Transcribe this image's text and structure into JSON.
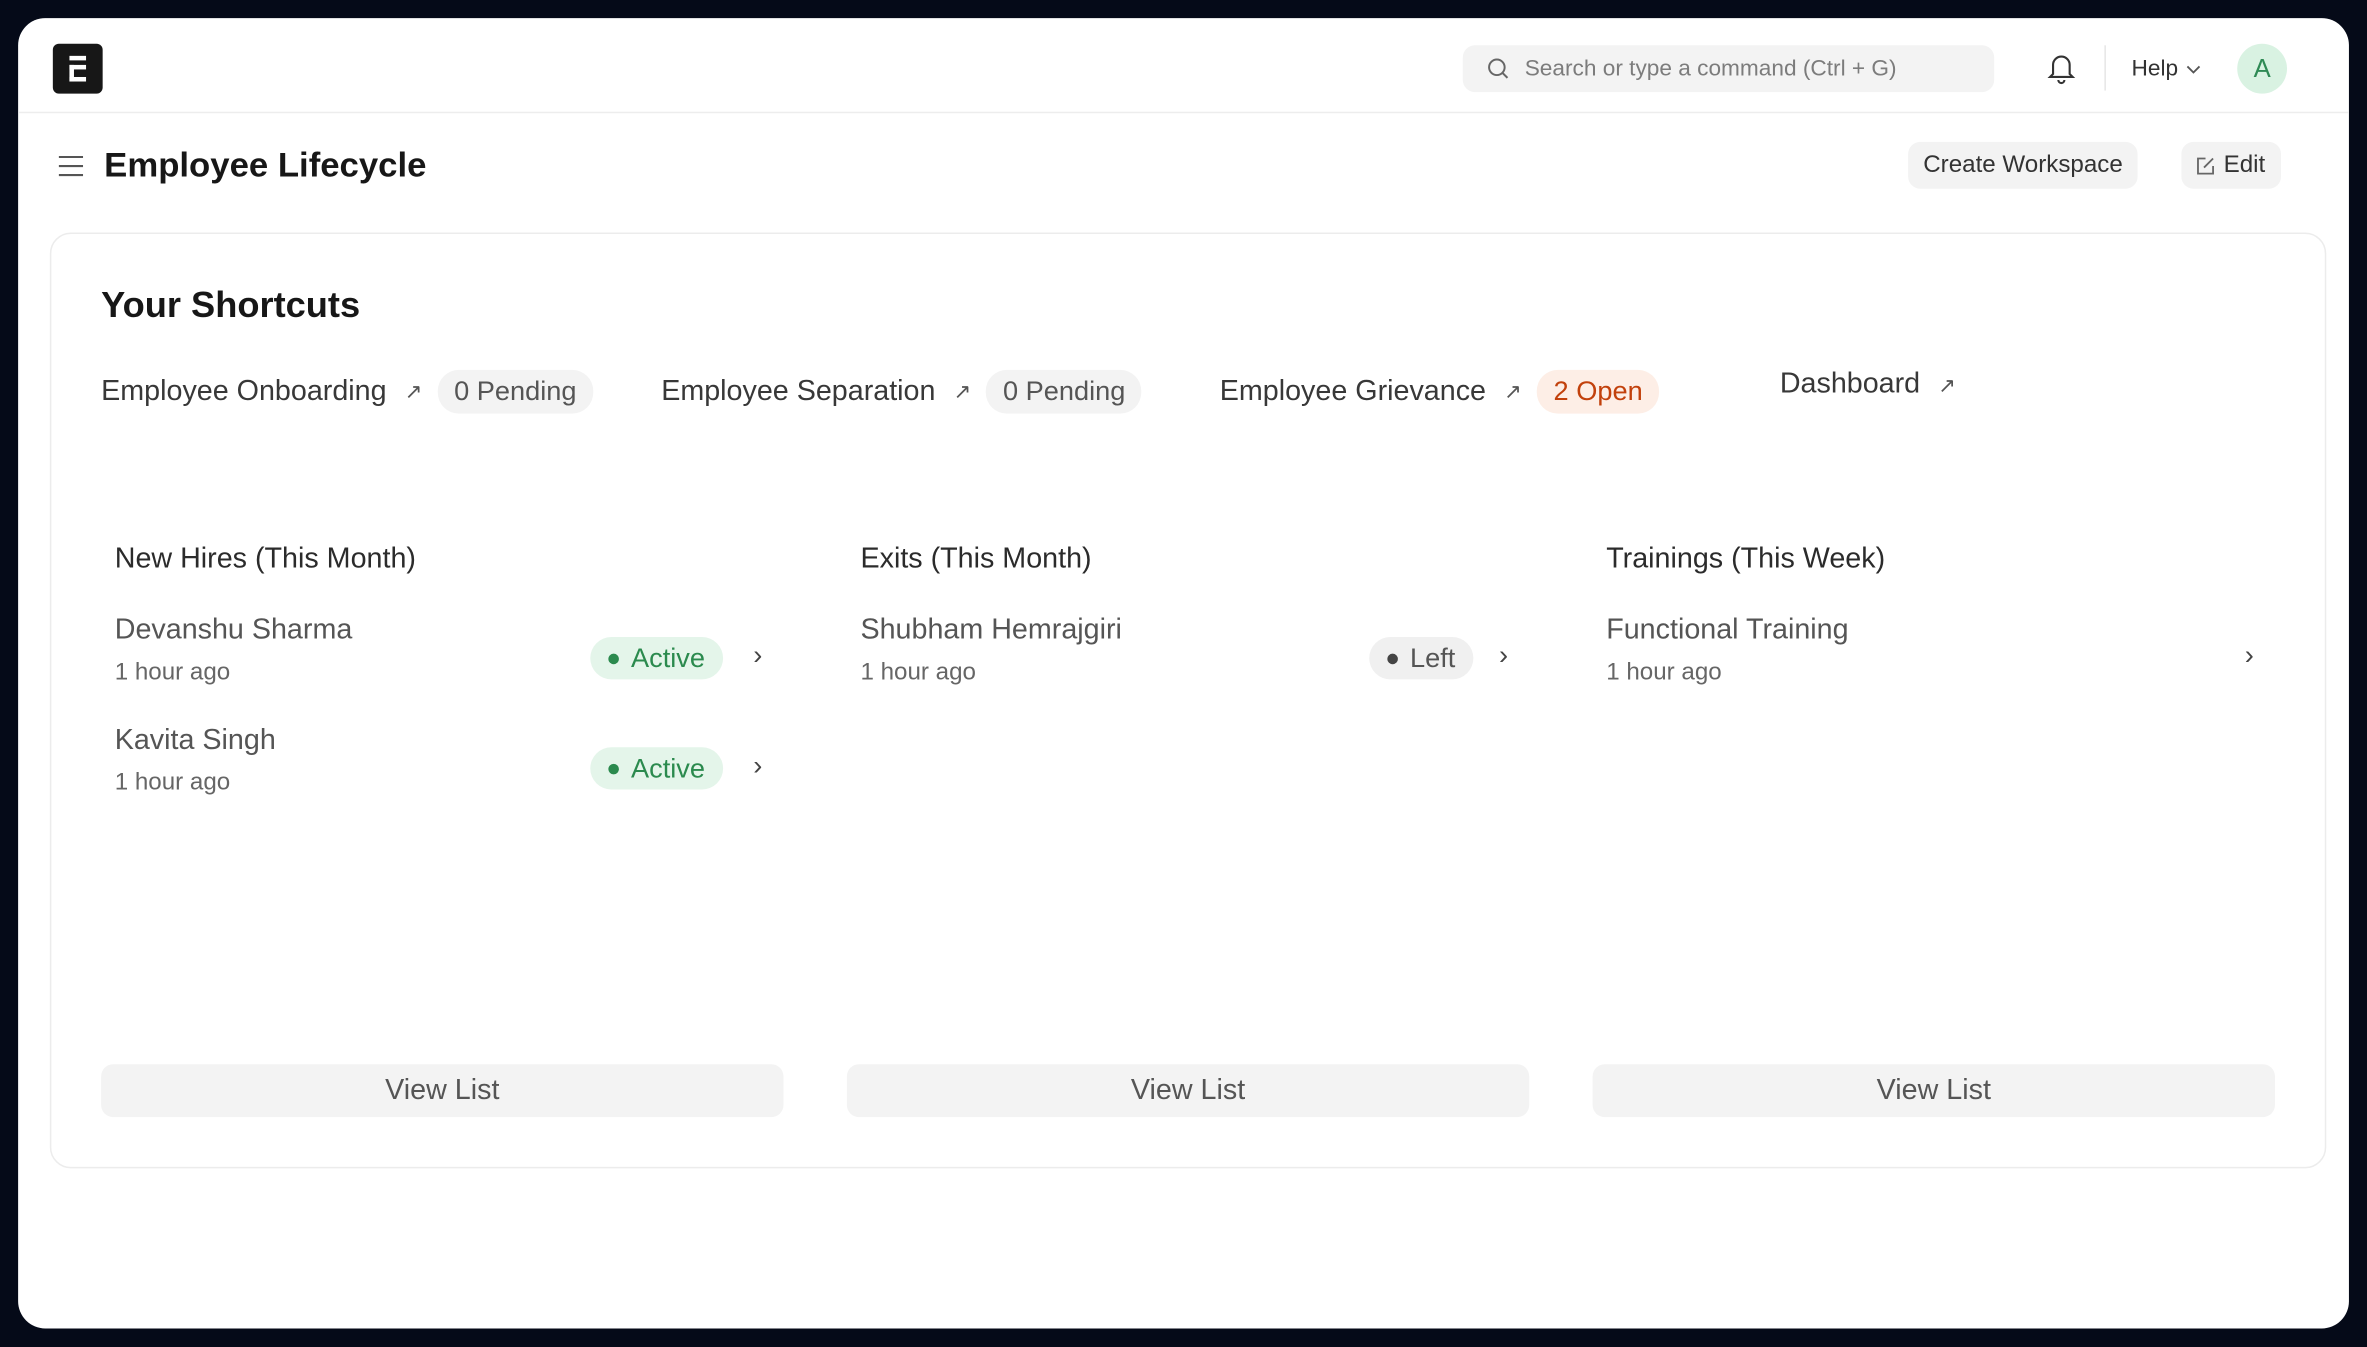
{
  "header": {
    "search_placeholder": "Search or type a command (Ctrl + G)",
    "help": "Help",
    "avatar": "A"
  },
  "page": {
    "title": "Employee Lifecycle",
    "create_workspace": "Create Workspace",
    "edit": "Edit"
  },
  "shortcuts": {
    "title": "Your Shortcuts",
    "items": [
      {
        "label": "Employee Onboarding",
        "count": "0 Pending"
      },
      {
        "label": "Employee Separation",
        "count": "0 Pending"
      },
      {
        "label": "Employee Grievance",
        "count": "2 Open",
        "count_color": "#c2410c"
      },
      {
        "label": "Dashboard"
      }
    ]
  },
  "lists": [
    {
      "title": "New Hires (This Month)",
      "rows": [
        {
          "name": "Devanshu Sharma",
          "time": "1 hour ago",
          "status": "Active"
        },
        {
          "name": "Kavita Singh",
          "time": "1 hour ago",
          "status": "Active"
        }
      ],
      "view": "View List"
    },
    {
      "title": "Exits (This Month)",
      "rows": [
        {
          "name": "Shubham Hemrajgiri",
          "time": "1 hour ago",
          "status": "Left"
        }
      ],
      "view": "View List"
    },
    {
      "title": "Trainings (This Week)",
      "rows": [
        {
          "name": "Functional Training",
          "time": "1 hour ago"
        }
      ],
      "view": "View List"
    }
  ],
  "colors": {
    "active": "#2b8a4e",
    "open": "#c2410c",
    "frame": "#050a18"
  }
}
